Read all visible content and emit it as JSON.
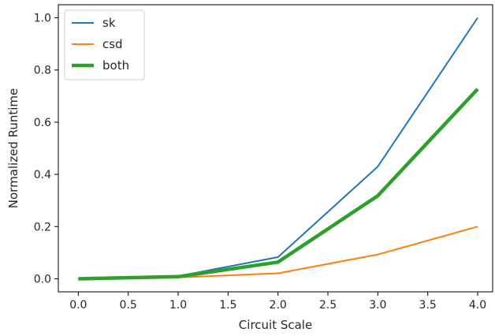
{
  "chart_data": {
    "type": "line",
    "xlabel": "Circuit Scale",
    "ylabel": "Normalized Runtime",
    "xlim": [
      -0.2,
      4.15
    ],
    "ylim": [
      -0.05,
      1.05
    ],
    "xticks": [
      0.0,
      0.5,
      1.0,
      1.5,
      2.0,
      2.5,
      3.0,
      3.5,
      4.0
    ],
    "xtick_labels": [
      "0.0",
      "0.5",
      "1.0",
      "1.5",
      "2.0",
      "2.5",
      "3.0",
      "3.5",
      "4.0"
    ],
    "yticks": [
      0.0,
      0.2,
      0.4,
      0.6,
      0.8,
      1.0
    ],
    "ytick_labels": [
      "0.0",
      "0.2",
      "0.4",
      "0.6",
      "0.8",
      "1.0"
    ],
    "grid": false,
    "legend": "top-left",
    "series": [
      {
        "name": "sk",
        "color": "#1f77b4",
        "x": [
          0,
          1,
          2,
          3,
          4
        ],
        "y": [
          0.0,
          0.01,
          0.083,
          0.43,
          1.0
        ]
      },
      {
        "name": "csd",
        "color": "#ff7f0e",
        "x": [
          0,
          1,
          2,
          3,
          4
        ],
        "y": [
          0.0,
          0.005,
          0.021,
          0.093,
          0.2
        ]
      },
      {
        "name": "both",
        "color": "#2ca02c",
        "x": [
          0,
          1,
          2,
          3,
          4
        ],
        "y": [
          0.0,
          0.008,
          0.064,
          0.318,
          0.727
        ]
      }
    ]
  }
}
